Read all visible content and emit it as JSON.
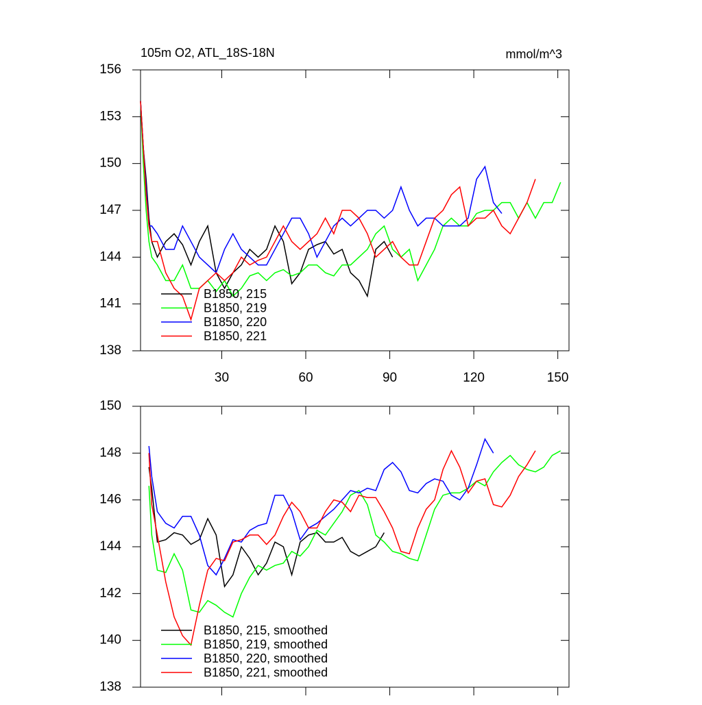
{
  "chart_data": [
    {
      "type": "line",
      "title": "105m O2, ATL_18S-18N",
      "units": "mmol/m^3",
      "x": [
        1,
        2,
        3,
        4,
        5,
        7,
        10,
        13,
        16,
        19,
        22,
        25,
        28,
        31,
        34,
        37,
        40,
        43,
        46,
        49,
        52,
        55,
        58,
        61,
        64,
        67,
        70,
        73,
        76,
        79,
        82,
        85,
        88,
        91,
        94,
        97,
        100,
        103,
        106,
        109,
        112,
        115,
        118,
        121,
        124,
        127,
        130,
        133,
        136,
        139,
        142,
        145,
        148,
        151
      ],
      "xlim": [
        1,
        154
      ],
      "xticks": [
        30,
        60,
        90,
        120,
        150
      ],
      "ylim": [
        138,
        156
      ],
      "yticks": [
        138,
        141,
        144,
        147,
        150,
        153,
        156
      ],
      "legend": "lower left",
      "grid": false,
      "series": [
        {
          "name": "B1850, 215",
          "color": "#000000",
          "values": [
            154,
            151,
            149,
            146.5,
            145,
            144,
            145,
            145.5,
            144.8,
            143.5,
            145,
            146,
            143,
            142,
            143,
            143.5,
            144.5,
            144,
            144.5,
            146,
            145,
            142.3,
            143,
            144.5,
            144.8,
            145,
            144.2,
            144.5,
            143,
            142.5,
            141.5,
            144.5,
            145,
            144,
            null,
            null,
            null,
            null,
            null,
            null,
            null,
            null,
            null,
            null,
            null,
            null,
            null,
            null,
            null,
            null,
            null,
            null,
            null,
            null
          ]
        },
        {
          "name": "B1850, 219",
          "color": "#00ff00",
          "values": [
            154,
            150,
            147,
            145,
            144,
            143.5,
            142.5,
            142.5,
            143.5,
            142,
            142,
            142.5,
            141.8,
            142.5,
            141.5,
            142,
            142.8,
            143,
            142.5,
            143,
            143.2,
            142.8,
            143,
            143.5,
            143.5,
            143,
            142.8,
            143.5,
            143.5,
            144,
            144.5,
            145.5,
            146,
            144.5,
            144,
            144.5,
            142.5,
            143.5,
            144.5,
            146,
            146.5,
            146,
            146,
            146.8,
            147,
            147,
            147.5,
            147.5,
            146.5,
            147.5,
            146.5,
            147.5,
            147.5,
            148.8
          ]
        },
        {
          "name": "B1850, 220",
          "color": "#0000ff",
          "values": [
            154,
            151,
            148.5,
            146,
            146,
            145.5,
            144.5,
            144.5,
            146,
            145,
            144,
            143.5,
            143,
            144.5,
            145.5,
            144.5,
            144,
            143.5,
            143.5,
            144.5,
            145.5,
            146.5,
            146.5,
            145.5,
            144,
            145,
            146,
            146.5,
            146,
            146.5,
            147,
            147,
            146.5,
            147,
            148.5,
            147,
            146,
            146.5,
            146.5,
            146,
            146,
            146,
            146.5,
            149,
            149.8,
            147.5,
            146.8,
            null,
            null,
            null,
            null,
            null,
            null,
            null
          ]
        },
        {
          "name": "B1850, 221",
          "color": "#ff0000",
          "values": [
            154,
            151,
            148,
            146,
            145,
            145,
            143,
            142,
            141.5,
            140,
            142,
            142.5,
            143,
            142.5,
            143,
            144,
            143.5,
            143.8,
            144,
            145,
            146,
            145,
            144.5,
            145,
            145.5,
            146.5,
            145.5,
            147,
            147,
            146.5,
            145.5,
            144,
            144.5,
            145,
            144,
            143.5,
            143.5,
            145,
            146.5,
            147,
            148,
            148.5,
            146,
            146.5,
            146.5,
            147,
            146,
            145.5,
            146.5,
            147.5,
            149,
            null,
            null,
            null
          ]
        }
      ]
    },
    {
      "type": "line",
      "x": [
        1,
        2,
        3,
        4,
        5,
        7,
        10,
        13,
        16,
        19,
        22,
        25,
        28,
        31,
        34,
        37,
        40,
        43,
        46,
        49,
        52,
        55,
        58,
        61,
        64,
        67,
        70,
        73,
        76,
        79,
        82,
        85,
        88,
        91,
        94,
        97,
        100,
        103,
        106,
        109,
        112,
        115,
        118,
        121,
        124,
        127,
        130,
        133,
        136,
        139,
        142,
        145,
        148,
        151
      ],
      "xlim": [
        1,
        154
      ],
      "xticks": [
        30,
        60,
        90,
        120,
        150
      ],
      "xtick_labels": false,
      "ylim": [
        138,
        150
      ],
      "yticks": [
        138,
        140,
        142,
        144,
        146,
        148,
        150
      ],
      "legend": "lower left",
      "grid": false,
      "series": [
        {
          "name": "B1850, 215, smoothed",
          "color": "#000000",
          "values": [
            null,
            null,
            null,
            147.4,
            146.5,
            144.2,
            144.3,
            144.6,
            144.5,
            144.1,
            144.3,
            145.2,
            144.5,
            142.3,
            142.8,
            144,
            143.5,
            142.8,
            143.3,
            144.2,
            144,
            142.8,
            144.2,
            144.5,
            144.6,
            144.2,
            144.2,
            144.4,
            143.8,
            143.6,
            143.8,
            144,
            144.6,
            null,
            null,
            null,
            null,
            null,
            null,
            null,
            null,
            null,
            null,
            null,
            null,
            null,
            null,
            null,
            null,
            null,
            null,
            null,
            null,
            null
          ]
        },
        {
          "name": "B1850, 219, smoothed",
          "color": "#00ff00",
          "values": [
            null,
            null,
            null,
            146.6,
            144.5,
            143,
            142.9,
            143.7,
            143,
            141.3,
            141.2,
            141.7,
            141.5,
            141.2,
            141,
            142,
            142.7,
            143.2,
            143,
            143.2,
            143.3,
            143.8,
            143.6,
            144,
            144.7,
            144.5,
            145,
            145.5,
            146.2,
            146.4,
            145.8,
            144.5,
            144.2,
            143.8,
            143.7,
            143.5,
            143.4,
            144.5,
            145.6,
            146.2,
            146.3,
            146.3,
            146.5,
            146.8,
            146.6,
            147.2,
            147.6,
            147.9,
            147.5,
            147.3,
            147.2,
            147.4,
            147.9,
            148.1
          ]
        },
        {
          "name": "B1850, 220, smoothed",
          "color": "#0000ff",
          "values": [
            null,
            null,
            null,
            148.3,
            147,
            145.5,
            145,
            144.8,
            145.3,
            145.3,
            144.5,
            143.2,
            142.8,
            143.5,
            144.3,
            144.2,
            144.7,
            144.9,
            145,
            146.2,
            146.2,
            145.5,
            144.3,
            144.8,
            145,
            145.3,
            145.6,
            146,
            146.4,
            146.3,
            146.5,
            146.4,
            147.3,
            147.6,
            147.2,
            146.4,
            146.3,
            146.7,
            146.9,
            146.8,
            146.2,
            146,
            146.5,
            147.5,
            148.6,
            148,
            null,
            null,
            null,
            null,
            null,
            null,
            null,
            null
          ]
        },
        {
          "name": "B1850, 221, smoothed",
          "color": "#ff0000",
          "values": [
            null,
            null,
            null,
            148,
            145.8,
            144.5,
            142.5,
            141,
            140.2,
            139.8,
            141.5,
            143,
            143.5,
            143.4,
            144.2,
            144.3,
            144.5,
            144.5,
            144.1,
            144.5,
            145.3,
            145.9,
            145.5,
            144.8,
            144.8,
            145.5,
            146,
            145.9,
            145.5,
            146.2,
            146.1,
            146.1,
            145.5,
            144.8,
            143.8,
            143.7,
            144.8,
            145.6,
            146,
            147.3,
            148.1,
            147.4,
            146.3,
            146.8,
            146.9,
            145.8,
            145.7,
            146.2,
            147,
            147.5,
            148.1,
            null,
            null,
            null
          ]
        }
      ]
    }
  ]
}
